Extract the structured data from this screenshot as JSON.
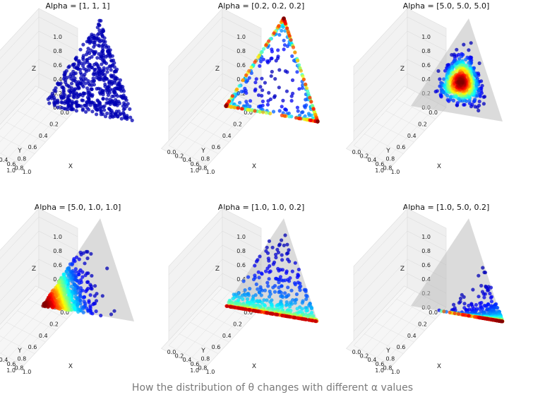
{
  "caption": "How the distribution of θ changes with different α values",
  "chart_data": [
    {
      "type": "scatter",
      "title": "Alpha = [1, 1, 1]",
      "alpha": [
        1,
        1,
        1
      ],
      "xlabel": "X",
      "ylabel": "Y",
      "zlabel": "Z",
      "xticks": [
        "0.0",
        "0.2",
        "0.4",
        "0.6",
        "0.8",
        "1.0"
      ],
      "yticks": [
        "0.0",
        "0.2",
        "0.4",
        "0.6",
        "0.8",
        "1.0"
      ],
      "zticks": [
        "0.0",
        "0.2",
        "0.4",
        "0.6",
        "0.8",
        "1.0"
      ],
      "xlim": [
        0,
        1
      ],
      "ylim": [
        0,
        1
      ],
      "zlim": [
        0,
        1
      ],
      "simplex_shown": false,
      "colormap": "jet"
    },
    {
      "type": "scatter",
      "title": "Alpha = [0.2, 0.2, 0.2]",
      "alpha": [
        0.2,
        0.2,
        0.2
      ],
      "xlabel": "X",
      "ylabel": "Y",
      "zlabel": "Z",
      "xticks": [
        "0.0",
        "0.2",
        "0.4",
        "0.6",
        "0.8",
        "1.0"
      ],
      "yticks": [
        "0.0",
        "0.2",
        "0.4",
        "0.6",
        "0.8",
        "1.0"
      ],
      "zticks": [
        "0.0",
        "0.2",
        "0.4",
        "0.6",
        "0.8",
        "1.0"
      ],
      "xlim": [
        0,
        1
      ],
      "ylim": [
        0,
        1
      ],
      "zlim": [
        0,
        1
      ],
      "simplex_shown": false,
      "colormap": "jet"
    },
    {
      "type": "scatter",
      "title": "Alpha = [5.0, 5.0, 5.0]",
      "alpha": [
        5.0,
        5.0,
        5.0
      ],
      "xlabel": "X",
      "ylabel": "Y",
      "zlabel": "Z",
      "xticks": [
        "0.0",
        "0.2",
        "0.4",
        "0.6",
        "0.8",
        "1.0"
      ],
      "yticks": [
        "0.0",
        "0.2",
        "0.4",
        "0.6",
        "0.8",
        "1.0"
      ],
      "zticks": [
        "0.0",
        "0.2",
        "0.4",
        "0.6",
        "0.8",
        "1.0"
      ],
      "xlim": [
        0,
        1
      ],
      "ylim": [
        0,
        1
      ],
      "zlim": [
        0,
        1
      ],
      "simplex_shown": true,
      "colormap": "jet"
    },
    {
      "type": "scatter",
      "title": "Alpha = [5.0, 1.0, 1.0]",
      "alpha": [
        5.0,
        1.0,
        1.0
      ],
      "xlabel": "X",
      "ylabel": "Y",
      "zlabel": "Z",
      "xticks": [
        "0.0",
        "0.2",
        "0.4",
        "0.6",
        "0.8",
        "1.0"
      ],
      "yticks": [
        "0.0",
        "0.2",
        "0.4",
        "0.6",
        "0.8",
        "1.0"
      ],
      "zticks": [
        "0.0",
        "0.2",
        "0.4",
        "0.6",
        "0.8",
        "1.0"
      ],
      "xlim": [
        0,
        1
      ],
      "ylim": [
        0,
        1
      ],
      "zlim": [
        0,
        1
      ],
      "simplex_shown": true,
      "colormap": "jet"
    },
    {
      "type": "scatter",
      "title": "Alpha = [1.0, 1.0, 0.2]",
      "alpha": [
        1.0,
        1.0,
        0.2
      ],
      "xlabel": "X",
      "ylabel": "Y",
      "zlabel": "Z",
      "xticks": [
        "0.0",
        "0.2",
        "0.4",
        "0.6",
        "0.8",
        "1.0"
      ],
      "yticks": [
        "0.0",
        "0.2",
        "0.4",
        "0.6",
        "0.8",
        "1.0"
      ],
      "zticks": [
        "0.0",
        "0.2",
        "0.4",
        "0.6",
        "0.8",
        "1.0"
      ],
      "xlim": [
        0,
        1
      ],
      "ylim": [
        0,
        1
      ],
      "zlim": [
        0,
        1
      ],
      "simplex_shown": true,
      "colormap": "jet"
    },
    {
      "type": "scatter",
      "title": "Alpha = [1.0, 5.0, 0.2]",
      "alpha": [
        1.0,
        5.0,
        0.2
      ],
      "xlabel": "X",
      "ylabel": "Y",
      "zlabel": "Z",
      "xticks": [
        "0.0",
        "0.2",
        "0.4",
        "0.6",
        "0.8",
        "1.0"
      ],
      "yticks": [
        "0.0",
        "0.2",
        "0.4",
        "0.6",
        "0.8",
        "1.0"
      ],
      "zticks": [
        "0.0",
        "0.2",
        "0.4",
        "0.6",
        "0.8",
        "1.0"
      ],
      "xlim": [
        0,
        1
      ],
      "ylim": [
        0,
        1
      ],
      "zlim": [
        0,
        1
      ],
      "simplex_shown": true,
      "colormap": "jet"
    }
  ]
}
